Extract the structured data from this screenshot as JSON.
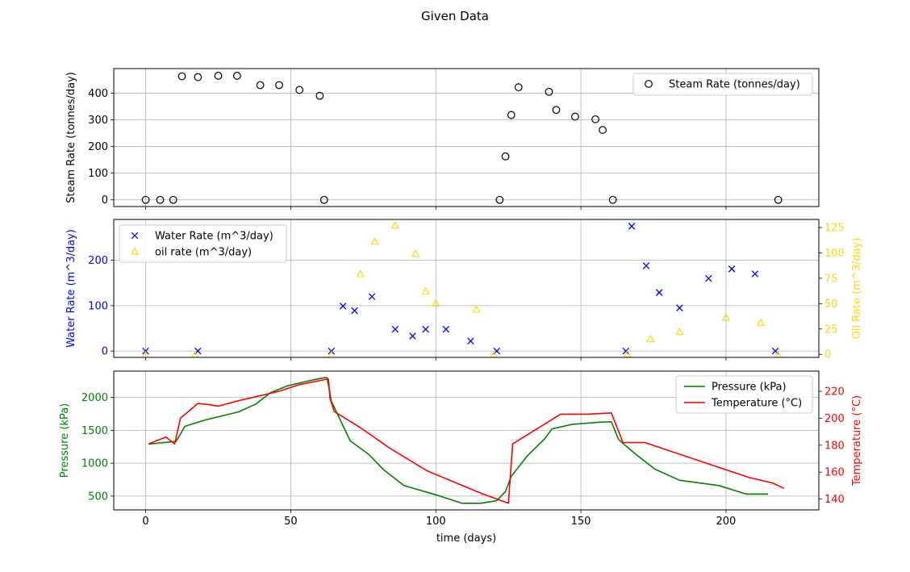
{
  "chart_data": {
    "title": "Given Data",
    "xlabel": "time (days)",
    "xlim": [
      -11,
      232
    ],
    "xticks": [
      0,
      50,
      100,
      150,
      200
    ],
    "panels": [
      {
        "type": "scatter",
        "ylabel_left": "Steam Rate (tonnes/day)",
        "ylim_left": [
          -25,
          492
        ],
        "yticks_left": [
          0,
          100,
          200,
          300,
          400
        ],
        "grid": true,
        "legend": "top-right",
        "series": [
          {
            "name": "Steam Rate (tonnes/day)",
            "marker": "circle",
            "color": "#000000",
            "axis": "left",
            "x": [
              0,
              5,
              9.5,
              12.5,
              18,
              25,
              31.5,
              39.5,
              46,
              53,
              60,
              61.5,
              122,
              124,
              126,
              128.5,
              139,
              141.5,
              148,
              155,
              157.5,
              161,
              218
            ],
            "y": [
              0,
              0,
              0,
              463,
              460,
              465,
              465,
              430,
              430,
              412,
              390,
              0,
              0,
              163,
              318,
              422,
              405,
              337,
              312,
              302,
              262,
              0,
              0
            ]
          }
        ]
      },
      {
        "type": "scatter",
        "ylabel_left": "Water Rate (m^3/day)",
        "ylabel_right": "Oil Rate (m^3/day)",
        "ylim_left": [
          -14,
          290
        ],
        "yticks_left": [
          0,
          100,
          200
        ],
        "ylim_right": [
          -3,
          133
        ],
        "yticks_right": [
          0,
          25,
          50,
          75,
          100,
          125
        ],
        "grid": true,
        "legend": "top-left",
        "series": [
          {
            "name": "Water Rate (m^3/day)",
            "marker": "x",
            "color": "#0000ff",
            "axis": "left",
            "x": [
              0,
              18,
              64,
              68,
              72,
              78,
              86,
              92,
              96.5,
              103.5,
              112,
              121,
              165.5,
              167.5,
              172.5,
              177,
              184,
              194,
              202,
              210,
              217
            ],
            "y": [
              0,
              0,
              0,
              99,
              89,
              120,
              48,
              33,
              48,
              48,
              22,
              0,
              0,
              275,
              188,
              129,
              95,
              160,
              181,
              170,
              0
            ]
          },
          {
            "name": "oil rate (m^3/day)",
            "marker": "triangle",
            "color": "#ffd700",
            "axis": "right",
            "x": [
              0,
              17,
              64,
              74,
              79,
              86,
              93,
              96.5,
              100,
              114,
              120,
              166,
              174,
              184,
              200,
              212,
              218
            ],
            "y": [
              -1,
              -1,
              -1,
              79,
              111,
              127,
              99,
              62,
              50,
              44,
              -1,
              0,
              15,
              22,
              36,
              31,
              -1
            ]
          }
        ]
      },
      {
        "type": "line",
        "ylabel_left": "Pressure (kPa)",
        "ylabel_right": "Temperature (°C)",
        "ylim_left": [
          290,
          2400
        ],
        "yticks_left": [
          500,
          1000,
          1500,
          2000
        ],
        "ylim_right": [
          132,
          235
        ],
        "yticks_right": [
          140,
          160,
          180,
          200,
          220
        ],
        "grid": true,
        "legend": "top-right",
        "series": [
          {
            "name": "Pressure (kPa)",
            "color": "#008000",
            "axis": "left",
            "x": [
              1,
              5,
              10.5,
              13.5,
              20,
              32,
              38,
              43,
              48.5,
              55,
              61.5,
              62.5,
              64,
              70.5,
              77,
              82,
              89,
              100,
              109,
              115.5,
              121,
              124,
              126,
              131.5,
              137.5,
              140,
              147,
              155.5,
              160.5,
              163,
              168.5,
              175.5,
              184,
              197.5,
              207,
              214.5
            ],
            "y": [
              1290,
              1310,
              1330,
              1560,
              1650,
              1780,
              1900,
              2070,
              2170,
              2240,
              2300,
              2300,
              1940,
              1340,
              1130,
              900,
              660,
              520,
              390,
              390,
              430,
              570,
              800,
              1110,
              1370,
              1520,
              1590,
              1620,
              1630,
              1360,
              1150,
              910,
              740,
              660,
              530,
              530
            ]
          },
          {
            "name": "Temperature (°C)",
            "color": "#ff0000",
            "axis": "right",
            "x": [
              1,
              7,
              10,
              12,
              18,
              22,
              25,
              32,
              46,
              53,
              62.5,
              63,
              63.5,
              65,
              74,
              84,
              97,
              116,
              125,
              126.5,
              143,
              152,
              160.5,
              164.5,
              172,
              208,
              216,
              220
            ],
            "y": [
              181,
              186,
              181,
              200,
              211,
              210,
              209,
              213,
              220,
              225,
              229,
              229,
              215,
              205,
              193,
              178,
              161,
              144,
              137,
              181,
              203,
              203,
              204,
              182,
              182,
              156,
              152,
              148
            ]
          }
        ]
      }
    ]
  }
}
